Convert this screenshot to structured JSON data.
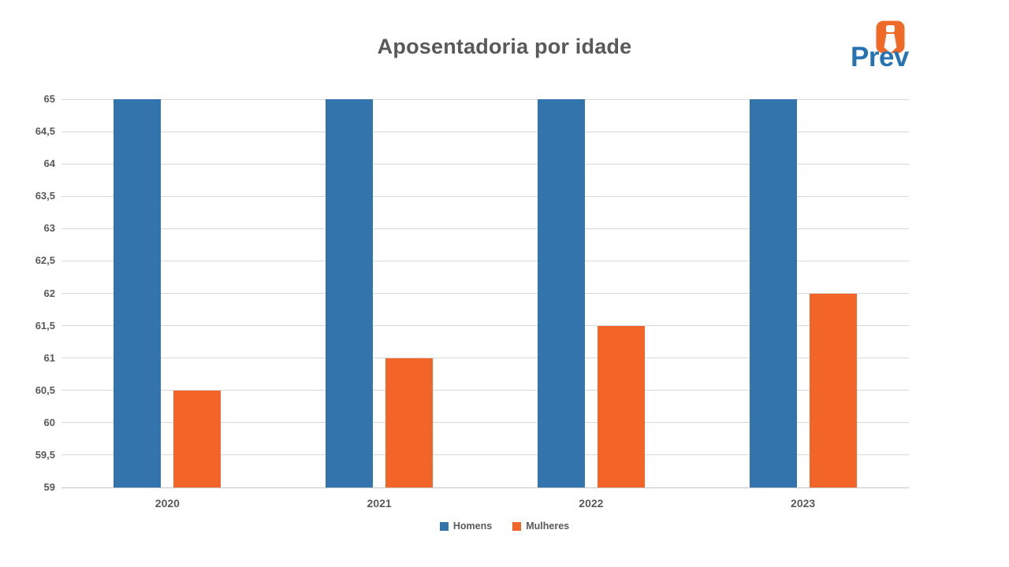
{
  "title": "Aposentadoria por idade",
  "logo": {
    "text": "Prev",
    "icon": "tie-icon",
    "icon_color": "#EE6A26",
    "text_color": "#2673B4"
  },
  "chart_data": {
    "type": "bar",
    "title": "Aposentadoria por idade",
    "categories": [
      "2020",
      "2021",
      "2022",
      "2023"
    ],
    "series": [
      {
        "name": "Homens",
        "color": "#3374AC",
        "values": [
          65,
          65,
          65,
          65
        ]
      },
      {
        "name": "Mulheres",
        "color": "#F26427",
        "values": [
          60.5,
          61,
          61.5,
          62
        ]
      }
    ],
    "ylim": [
      59,
      65
    ],
    "ystep": 0.5,
    "ytick_labels": [
      "59",
      "59,5",
      "60",
      "60,5",
      "61",
      "61,5",
      "62",
      "62,5",
      "63",
      "63,5",
      "64",
      "64,5",
      "65"
    ],
    "decimal_separator": ",",
    "grid": true,
    "legend_position": "bottom",
    "colors": {
      "text": "#595959",
      "gridline": "#D9D9D9",
      "axis_line": "#C6C6C6"
    }
  }
}
